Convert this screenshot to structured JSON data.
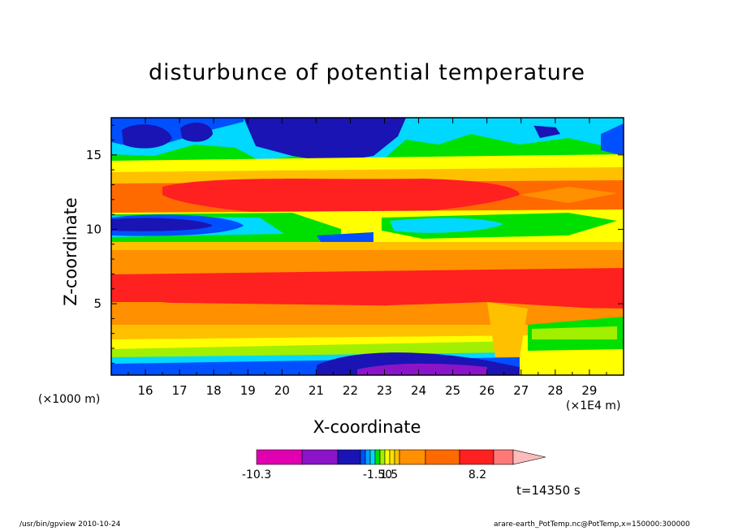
{
  "chart_data": {
    "type": "heatmap",
    "title": "disturbunce of potential temperature",
    "xlabel": "X-coordinate",
    "ylabel": "Z-coordinate",
    "x_unit_left": "(×1000 m)",
    "x_unit_right": "(×1E4 m)",
    "xlim": [
      15.0,
      30.0
    ],
    "ylim": [
      0.2,
      17.5
    ],
    "x_ticks": [
      "16",
      "17",
      "18",
      "19",
      "20",
      "21",
      "22",
      "23",
      "24",
      "25",
      "26",
      "27",
      "28",
      "29"
    ],
    "y_ticks": [
      "5",
      "10",
      "15"
    ],
    "x_tick_values": [
      16,
      17,
      18,
      19,
      20,
      21,
      22,
      23,
      24,
      25,
      26,
      27,
      28,
      29
    ],
    "y_tick_values": [
      5,
      10,
      15
    ],
    "colorbar": {
      "tick_labels": [
        "-10.3",
        "-1.50",
        "1.5",
        "8.2"
      ],
      "colors": [
        "#e000b0",
        "#8c14c8",
        "#1a14b4",
        "#0050ff",
        "#00a0ff",
        "#00d8ff",
        "#00e000",
        "#a0f000",
        "#ffff00",
        "#ffe000",
        "#ffc000",
        "#ff9000",
        "#ff6a00",
        "#ff2020",
        "#ff7878",
        "#ffbbbb"
      ]
    },
    "bands": [
      {
        "z_bottom": 0.2,
        "z_top": 0.8,
        "value": -3.0,
        "x_range": [
          19.5,
          27.0
        ]
      },
      {
        "z_bottom": 0.2,
        "z_top": 1.5,
        "value": 0.5
      },
      {
        "z_bottom": 1.5,
        "z_top": 3.0,
        "value": 1.5
      },
      {
        "z_bottom": 3.0,
        "z_top": 5.0,
        "value": 3.0
      },
      {
        "z_bottom": 5.0,
        "z_top": 8.0,
        "value": 5.0
      },
      {
        "z_bottom": 8.0,
        "z_top": 9.5,
        "value": 3.5
      },
      {
        "z_bottom": 9.5,
        "z_top": 11.5,
        "value": 0.0
      },
      {
        "z_bottom": 11.5,
        "z_top": 14.0,
        "value": 4.0
      },
      {
        "z_bottom": 14.0,
        "z_top": 15.5,
        "value": 0.5
      },
      {
        "z_bottom": 15.5,
        "z_top": 17.5,
        "value": -3.0
      }
    ],
    "cells": [
      {
        "x": 21.5,
        "z": 12.7,
        "value": 6.5
      },
      {
        "x": 17.5,
        "z": 10.7,
        "value": -3.5
      },
      {
        "x": 24.0,
        "z": 10.2,
        "value": -1.2
      },
      {
        "x": 16.5,
        "z": 16.5,
        "value": -4.0
      },
      {
        "x": 22.0,
        "z": 16.3,
        "value": -4.5
      },
      {
        "x": 18.0,
        "z": 16.5,
        "value": -4.0
      },
      {
        "x": 28.5,
        "z": 2.8,
        "value": 0.2
      }
    ]
  },
  "time_label": "t=14350 s",
  "footer": {
    "left": "/usr/bin/gpview   2010-10-24",
    "right": "arare-earth_PotTemp.nc@PotTemp,x=150000:300000"
  }
}
